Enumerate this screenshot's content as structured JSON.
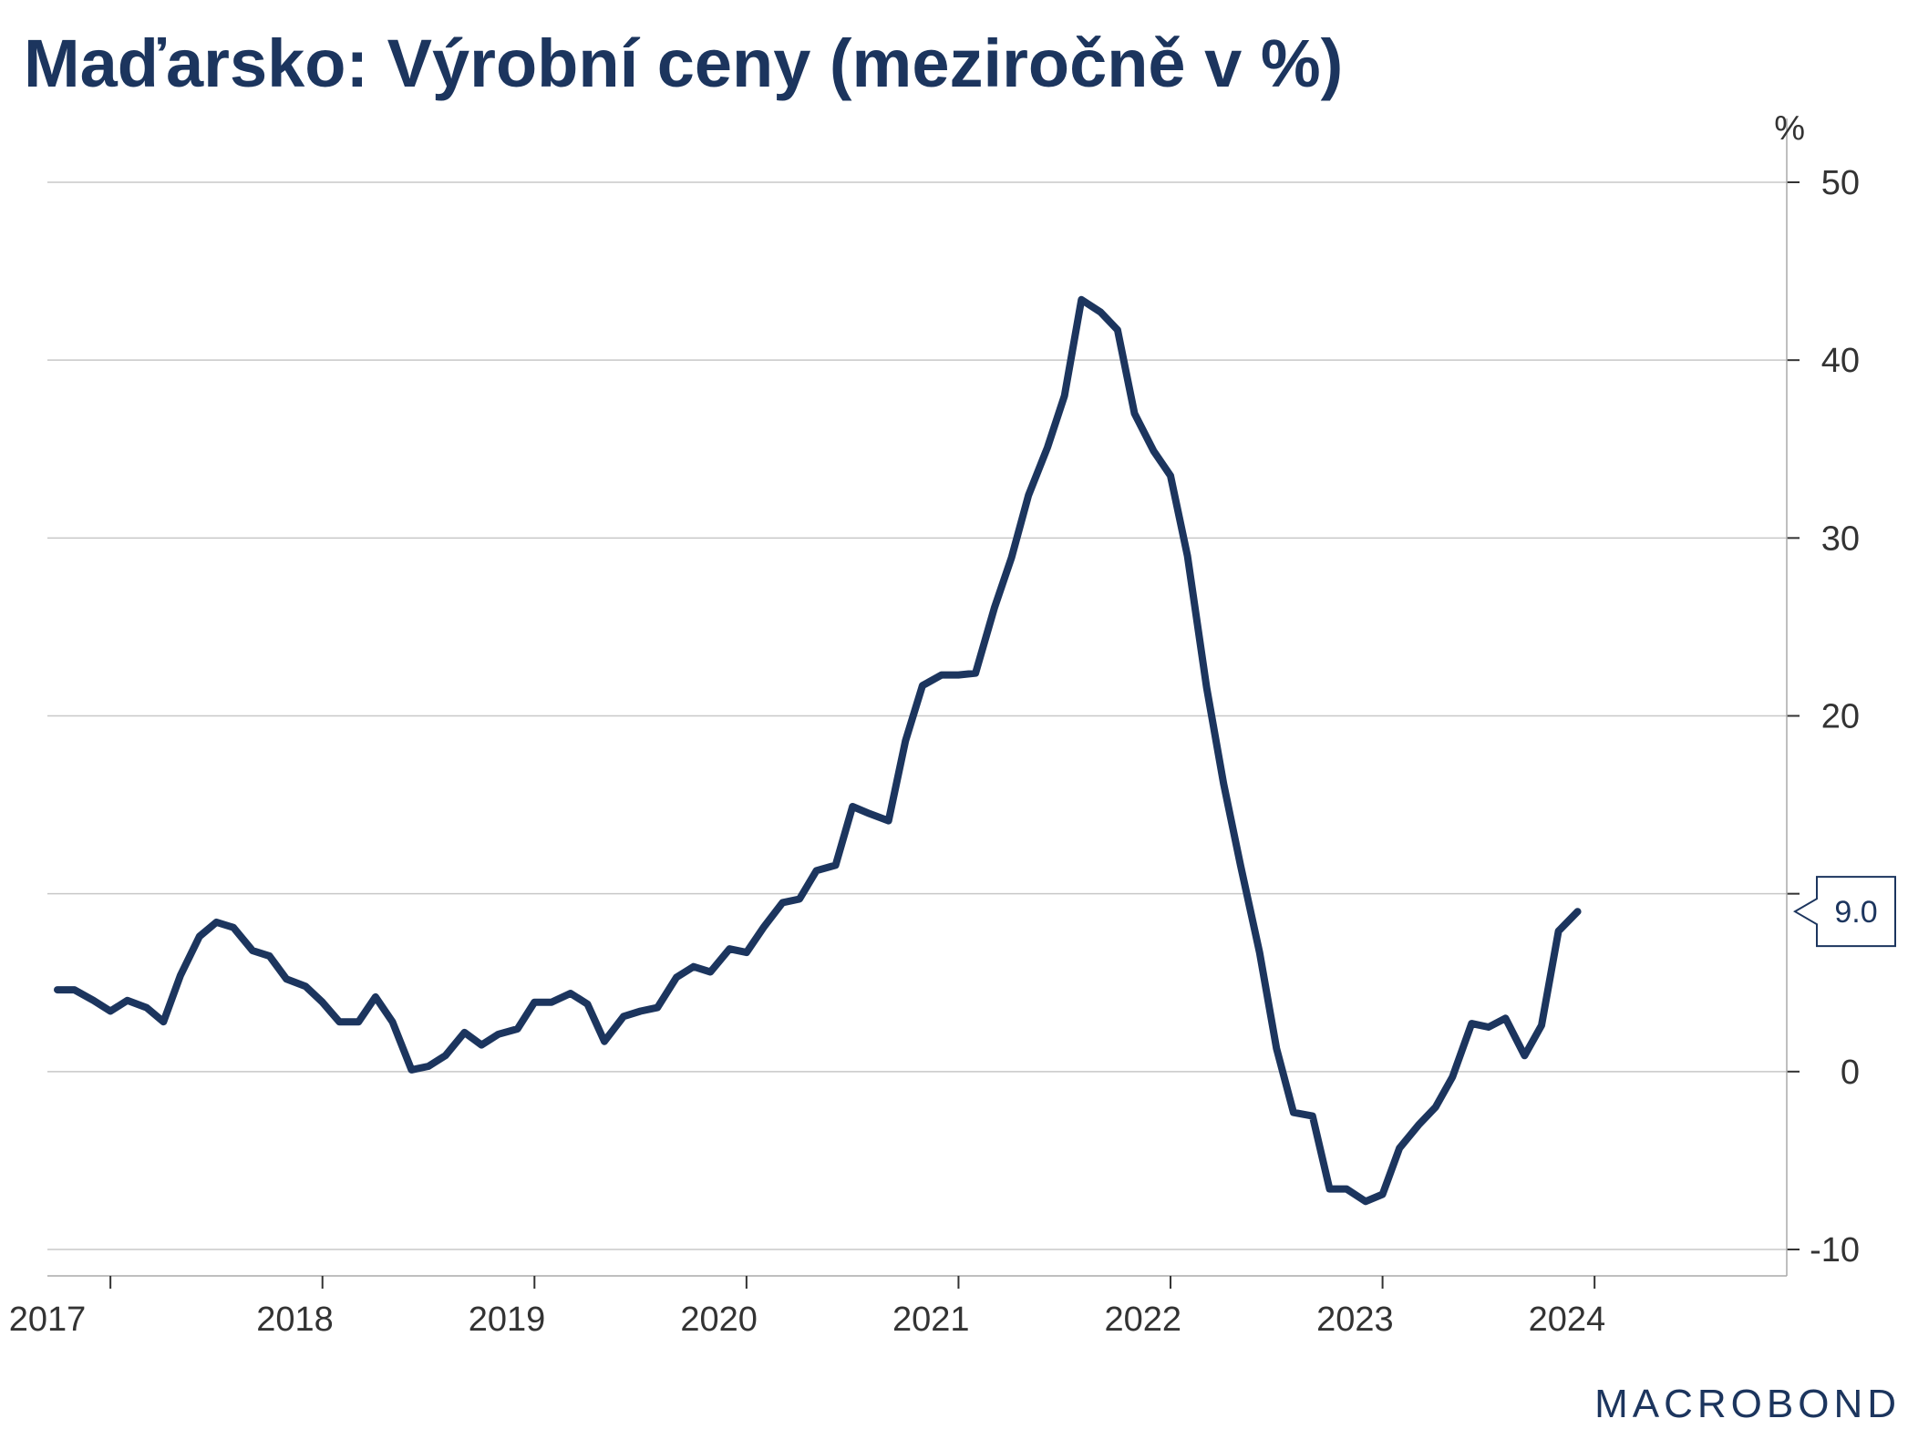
{
  "chart_data": {
    "type": "line",
    "title": "Maďarsko: Výrobní ceny (meziročně v %)",
    "yunit": "%",
    "ylim": [
      -10,
      50
    ],
    "yticks": [
      -10,
      0,
      10,
      20,
      30,
      40,
      50
    ],
    "ytick_labels": [
      "-10",
      "0",
      "",
      "20",
      "30",
      "40",
      "50"
    ],
    "xlim": [
      2017.0,
      2024.92
    ],
    "xticks": [
      2017,
      2018,
      2019,
      2020,
      2021,
      2022,
      2023,
      2024
    ],
    "grid": true,
    "y_axis_side": "right",
    "last_value_label": "9.0",
    "brand": "MACROBOND",
    "colors": {
      "line": "#1c355e",
      "grid": "#c8c8c8",
      "text": "#333333"
    },
    "series": [
      {
        "values": [
          [
            2017.0,
            4.6
          ],
          [
            2017.08,
            4.6
          ],
          [
            2017.17,
            4.0
          ],
          [
            2017.25,
            3.4
          ],
          [
            2017.33,
            4.0
          ],
          [
            2017.42,
            3.6
          ],
          [
            2017.5,
            2.8
          ],
          [
            2017.58,
            5.4
          ],
          [
            2017.67,
            7.6
          ],
          [
            2017.75,
            8.4
          ],
          [
            2017.83,
            8.1
          ],
          [
            2017.92,
            6.8
          ],
          [
            2018.0,
            6.5
          ],
          [
            2018.08,
            5.2
          ],
          [
            2018.17,
            4.8
          ],
          [
            2018.25,
            3.9
          ],
          [
            2018.33,
            2.8
          ],
          [
            2018.42,
            2.8
          ],
          [
            2018.5,
            4.2
          ],
          [
            2018.58,
            2.8
          ],
          [
            2018.67,
            0.1
          ],
          [
            2018.75,
            0.3
          ],
          [
            2018.83,
            0.9
          ],
          [
            2018.92,
            2.2
          ],
          [
            2019.0,
            1.5
          ],
          [
            2019.08,
            2.1
          ],
          [
            2019.17,
            2.4
          ],
          [
            2019.25,
            3.9
          ],
          [
            2019.33,
            3.9
          ],
          [
            2019.42,
            4.4
          ],
          [
            2019.5,
            3.8
          ],
          [
            2019.58,
            1.7
          ],
          [
            2019.67,
            3.1
          ],
          [
            2019.75,
            3.4
          ],
          [
            2019.83,
            3.6
          ],
          [
            2019.92,
            5.3
          ],
          [
            2020.0,
            5.9
          ],
          [
            2020.08,
            5.6
          ],
          [
            2020.17,
            6.9
          ],
          [
            2020.25,
            6.7
          ],
          [
            2020.33,
            8.1
          ],
          [
            2020.42,
            9.5
          ],
          [
            2020.5,
            9.7
          ],
          [
            2020.58,
            11.3
          ],
          [
            2020.67,
            11.6
          ],
          [
            2020.75,
            14.9
          ],
          [
            2020.83,
            14.5
          ],
          [
            2020.92,
            14.1
          ],
          [
            2021.0,
            18.6
          ],
          [
            2021.08,
            21.7
          ],
          [
            2021.17,
            22.3
          ],
          [
            2021.25,
            22.3
          ],
          [
            2021.33,
            22.4
          ],
          [
            2021.42,
            26.1
          ],
          [
            2021.5,
            28.9
          ],
          [
            2021.58,
            32.4
          ],
          [
            2021.67,
            35.1
          ],
          [
            2021.75,
            38.0
          ],
          [
            2021.83,
            43.4
          ],
          [
            2021.92,
            42.7
          ],
          [
            2022.0,
            41.7
          ],
          [
            2022.08,
            37.0
          ],
          [
            2022.17,
            34.9
          ],
          [
            2022.25,
            33.5
          ],
          [
            2022.33,
            29.0
          ],
          [
            2022.42,
            21.6
          ],
          [
            2022.5,
            16.2
          ],
          [
            2022.58,
            11.6
          ],
          [
            2022.67,
            6.7
          ],
          [
            2022.75,
            1.3
          ],
          [
            2022.83,
            -2.3
          ],
          [
            2022.92,
            -2.5
          ],
          [
            2023.0,
            -6.6
          ],
          [
            2023.08,
            -6.6
          ],
          [
            2023.17,
            -7.3
          ],
          [
            2023.25,
            -6.9
          ],
          [
            2023.33,
            -4.3
          ],
          [
            2023.42,
            -3.0
          ],
          [
            2023.5,
            -2.0
          ],
          [
            2023.58,
            -0.3
          ],
          [
            2023.67,
            2.7
          ],
          [
            2023.75,
            2.5
          ],
          [
            2023.83,
            3.0
          ],
          [
            2023.92,
            0.9
          ],
          [
            2024.0,
            2.6
          ],
          [
            2024.08,
            7.9
          ],
          [
            2024.17,
            9.0
          ]
        ]
      }
    ]
  }
}
